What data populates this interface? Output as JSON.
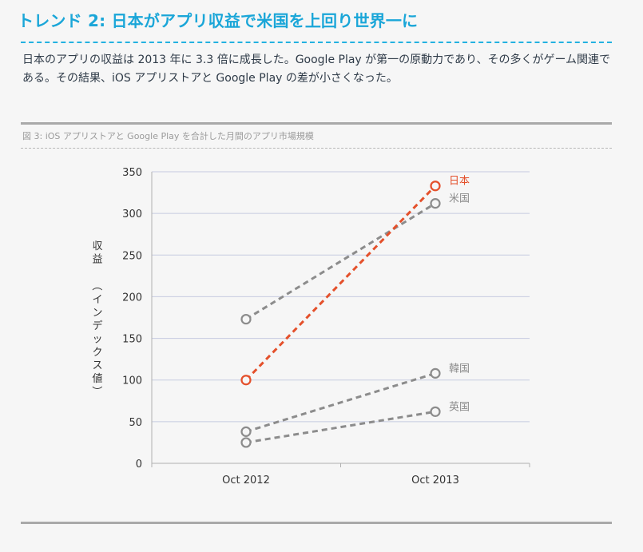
{
  "header": {
    "title": "トレンド 2: 日本がアプリ収益で米国を上回り世界一に"
  },
  "intro": {
    "text": "日本のアプリの収益は 2013 年に 3.3 倍に成長した。Google Play が第一の原動力であり、その多くがゲーム関連である。その結果、iOS アプリストアと Google Play の差が小さくなった。"
  },
  "figure": {
    "caption": "図 3: iOS アプリストアと Google Play を合計した月間のアプリ市場規模"
  },
  "colors": {
    "highlight": "#e4502b",
    "other": "#8c8c8c",
    "grid": "#c6cbe0",
    "axis": "#b0b0b0"
  },
  "chart_data": {
    "type": "line",
    "x": [
      "Oct 2012",
      "Oct 2013"
    ],
    "ylabel": "収益（インデックス値）",
    "ylim": [
      0,
      350
    ],
    "yticks": [
      0,
      50,
      100,
      150,
      200,
      250,
      300,
      350
    ],
    "grid": true,
    "series": [
      {
        "name": "日本",
        "values": [
          100,
          333
        ],
        "highlight": true
      },
      {
        "name": "米国",
        "values": [
          173,
          312
        ],
        "highlight": false
      },
      {
        "name": "韓国",
        "values": [
          38,
          108
        ],
        "highlight": false
      },
      {
        "name": "英国",
        "values": [
          25,
          62
        ],
        "highlight": false
      }
    ]
  }
}
